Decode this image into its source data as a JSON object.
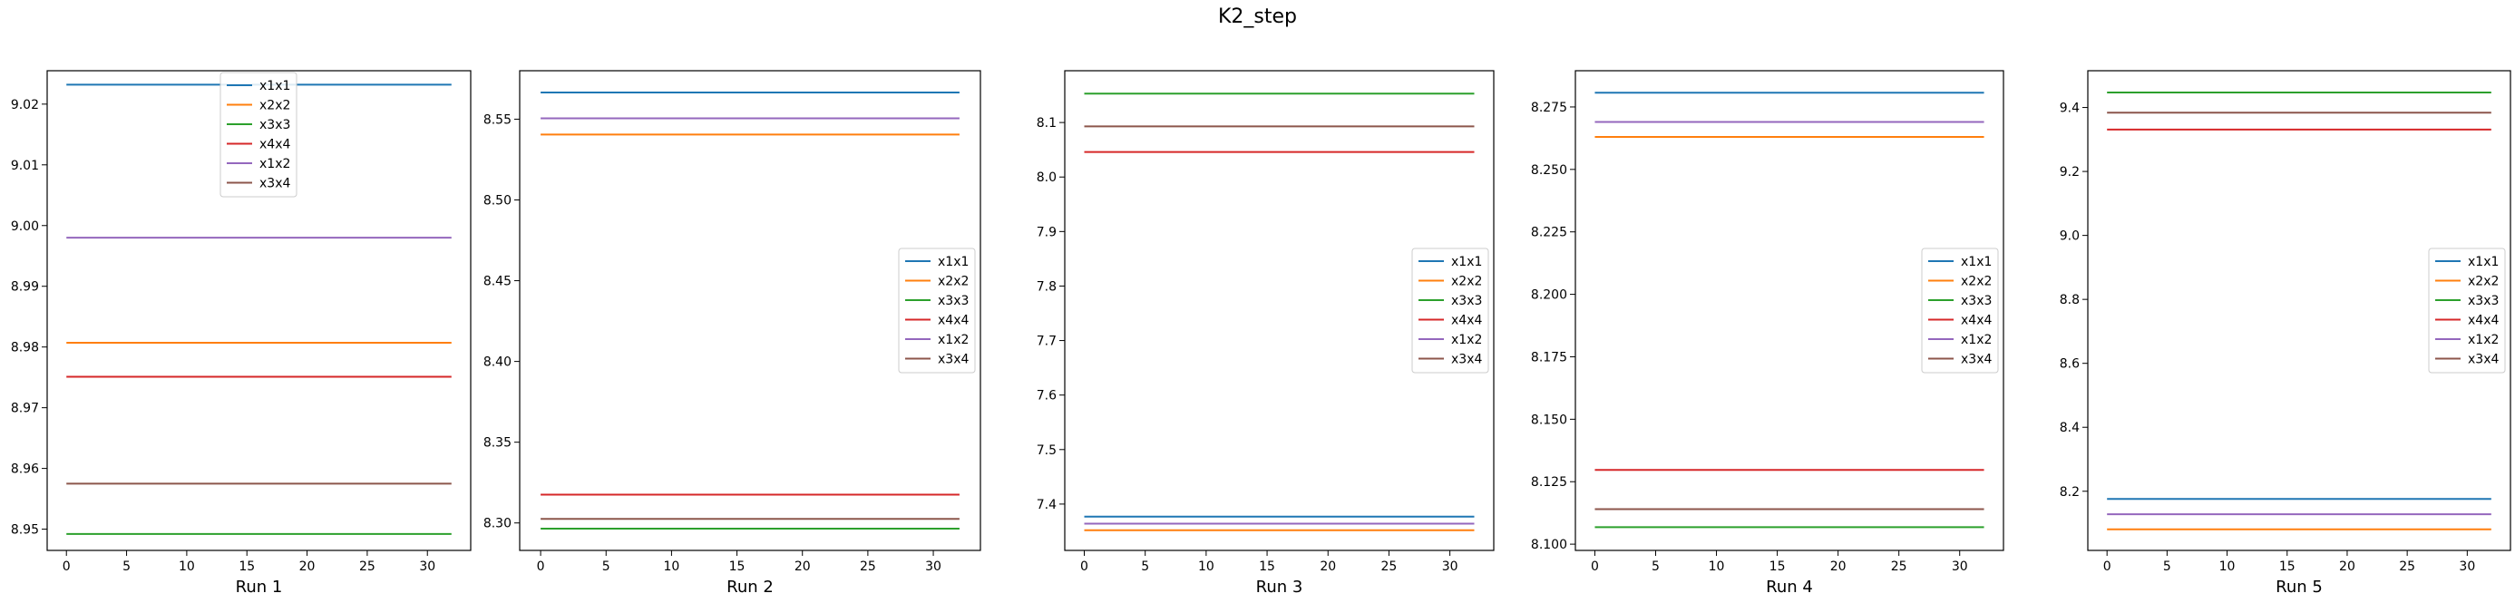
{
  "figure": {
    "title": "K2_step"
  },
  "chart_data": [
    {
      "type": "line",
      "xlabel": "Run 1",
      "x": [
        0,
        32
      ],
      "xticks": [
        0,
        5,
        10,
        15,
        20,
        25,
        30
      ],
      "ylim": [
        8.9465,
        9.0255
      ],
      "yticks": [
        8.95,
        8.96,
        8.97,
        8.98,
        8.99,
        9.0,
        9.01,
        9.02
      ],
      "ytick_decimals": 2,
      "legend": "upper-center",
      "grid": false,
      "series": [
        {
          "name": "x1x1",
          "color": "#1f77b4",
          "value": 9.0232
        },
        {
          "name": "x2x2",
          "color": "#ff7f0e",
          "value": 8.9807
        },
        {
          "name": "x3x3",
          "color": "#2ca02c",
          "value": 8.9492
        },
        {
          "name": "x4x4",
          "color": "#d62728",
          "value": 8.9751
        },
        {
          "name": "x1x2",
          "color": "#9467bd",
          "value": 8.998
        },
        {
          "name": "x3x4",
          "color": "#8c564b",
          "value": 8.9575
        }
      ]
    },
    {
      "type": "line",
      "xlabel": "Run 2",
      "x": [
        0,
        32
      ],
      "xticks": [
        0,
        5,
        10,
        15,
        20,
        25,
        30
      ],
      "ylim": [
        8.283,
        8.58
      ],
      "yticks": [
        8.3,
        8.35,
        8.4,
        8.45,
        8.5,
        8.55
      ],
      "ytick_decimals": 2,
      "legend": "center-right",
      "grid": false,
      "series": [
        {
          "name": "x1x1",
          "color": "#1f77b4",
          "value": 8.5665
        },
        {
          "name": "x2x2",
          "color": "#ff7f0e",
          "value": 8.5405
        },
        {
          "name": "x3x3",
          "color": "#2ca02c",
          "value": 8.2965
        },
        {
          "name": "x4x4",
          "color": "#d62728",
          "value": 8.3175
        },
        {
          "name": "x1x2",
          "color": "#9467bd",
          "value": 8.5505
        },
        {
          "name": "x3x4",
          "color": "#8c564b",
          "value": 8.3025
        }
      ]
    },
    {
      "type": "line",
      "xlabel": "Run 3",
      "x": [
        0,
        32
      ],
      "xticks": [
        0,
        5,
        10,
        15,
        20,
        25,
        30
      ],
      "ylim": [
        7.315,
        8.195
      ],
      "yticks": [
        7.4,
        7.5,
        7.6,
        7.7,
        7.8,
        7.9,
        8.0,
        8.1
      ],
      "ytick_decimals": 1,
      "legend": "center-right",
      "grid": false,
      "series": [
        {
          "name": "x1x1",
          "color": "#1f77b4",
          "value": 7.377
        },
        {
          "name": "x2x2",
          "color": "#ff7f0e",
          "value": 7.352
        },
        {
          "name": "x3x3",
          "color": "#2ca02c",
          "value": 8.153
        },
        {
          "name": "x4x4",
          "color": "#d62728",
          "value": 8.046
        },
        {
          "name": "x1x2",
          "color": "#9467bd",
          "value": 7.364
        },
        {
          "name": "x3x4",
          "color": "#8c564b",
          "value": 8.093
        }
      ]
    },
    {
      "type": "line",
      "xlabel": "Run 4",
      "x": [
        0,
        32
      ],
      "xticks": [
        0,
        5,
        10,
        15,
        20,
        25,
        30
      ],
      "ylim": [
        8.0975,
        8.2895
      ],
      "yticks": [
        8.1,
        8.125,
        8.15,
        8.175,
        8.2,
        8.225,
        8.25,
        8.275
      ],
      "ytick_decimals": 3,
      "legend": "center-right",
      "grid": false,
      "series": [
        {
          "name": "x1x1",
          "color": "#1f77b4",
          "value": 8.2807
        },
        {
          "name": "x2x2",
          "color": "#ff7f0e",
          "value": 8.263
        },
        {
          "name": "x3x3",
          "color": "#2ca02c",
          "value": 8.1068
        },
        {
          "name": "x4x4",
          "color": "#d62728",
          "value": 8.1297
        },
        {
          "name": "x1x2",
          "color": "#9467bd",
          "value": 8.269
        },
        {
          "name": "x3x4",
          "color": "#8c564b",
          "value": 8.114
        }
      ]
    },
    {
      "type": "line",
      "xlabel": "Run 5",
      "x": [
        0,
        32
      ],
      "xticks": [
        0,
        5,
        10,
        15,
        20,
        25,
        30
      ],
      "ylim": [
        8.015,
        9.515
      ],
      "yticks": [
        8.2,
        8.4,
        8.6,
        8.8,
        9.0,
        9.2,
        9.4
      ],
      "ytick_decimals": 1,
      "legend": "center-right",
      "grid": false,
      "series": [
        {
          "name": "x1x1",
          "color": "#1f77b4",
          "value": 8.176
        },
        {
          "name": "x2x2",
          "color": "#ff7f0e",
          "value": 8.081
        },
        {
          "name": "x3x3",
          "color": "#2ca02c",
          "value": 9.447
        },
        {
          "name": "x4x4",
          "color": "#d62728",
          "value": 9.331
        },
        {
          "name": "x1x2",
          "color": "#9467bd",
          "value": 8.128
        },
        {
          "name": "x3x4",
          "color": "#8c564b",
          "value": 9.384
        }
      ]
    }
  ]
}
